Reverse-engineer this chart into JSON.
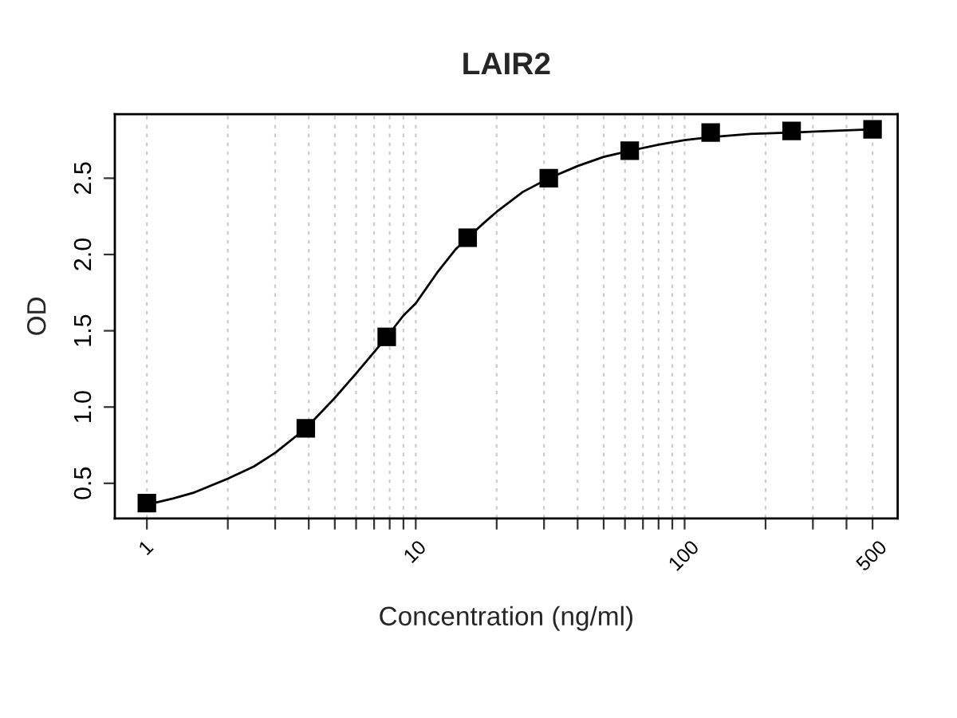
{
  "chart_data": {
    "type": "scatter",
    "title": "LAIR2",
    "xlabel": "Concentration (ng/ml)",
    "ylabel": "OD",
    "log": "x",
    "grid": "x",
    "xlim": [
      0.76,
      620
    ],
    "ylim": [
      0.27,
      2.92
    ],
    "xticks": [
      1,
      {
        "value": 2,
        "label": null
      },
      {
        "value": 3,
        "label": null
      },
      {
        "value": 4,
        "label": null
      },
      {
        "value": 5,
        "label": null
      },
      {
        "value": 6,
        "label": null
      },
      {
        "value": 7,
        "label": null
      },
      {
        "value": 8,
        "label": null
      },
      {
        "value": 9,
        "label": null
      },
      10,
      {
        "value": 20,
        "label": null
      },
      {
        "value": 30,
        "label": null
      },
      {
        "value": 40,
        "label": null
      },
      {
        "value": 50,
        "label": null
      },
      {
        "value": 60,
        "label": null
      },
      {
        "value": 70,
        "label": null
      },
      {
        "value": 80,
        "label": null
      },
      {
        "value": 90,
        "label": null
      },
      100,
      {
        "value": 200,
        "label": null
      },
      {
        "value": 300,
        "label": null
      },
      {
        "value": 400,
        "label": null
      },
      500
    ],
    "yticks": [
      0.5,
      {
        "value": 1,
        "label": "1.0"
      },
      1.5,
      {
        "value": 2,
        "label": "2.0"
      },
      2.5
    ],
    "series": [
      {
        "type": "line",
        "color": "#000000",
        "marker": "none",
        "line_style": "solid",
        "x": [
          1,
          1.25,
          1.5,
          2,
          2.5,
          3,
          3.9,
          5,
          6,
          7,
          7.8,
          9,
          10,
          12,
          14,
          15.6,
          18,
          20,
          25,
          31.25,
          40,
          50,
          62.5,
          80,
          100,
          125,
          175,
          250,
          350,
          500
        ],
        "values": [
          0.36,
          0.4,
          0.44,
          0.53,
          0.61,
          0.7,
          0.86,
          1.06,
          1.22,
          1.36,
          1.46,
          1.6,
          1.68,
          1.88,
          2.03,
          2.11,
          2.21,
          2.28,
          2.41,
          2.5,
          2.58,
          2.64,
          2.68,
          2.72,
          2.75,
          2.77,
          2.79,
          2.8,
          2.81,
          2.82
        ]
      },
      {
        "color": "#000000",
        "marker": "square",
        "x": [
          1,
          3.9,
          7.8,
          15.6,
          31.25,
          62.5,
          125,
          250,
          500
        ],
        "values": [
          0.37,
          0.86,
          1.46,
          2.11,
          2.5,
          2.68,
          2.8,
          2.81,
          2.82
        ]
      }
    ]
  }
}
